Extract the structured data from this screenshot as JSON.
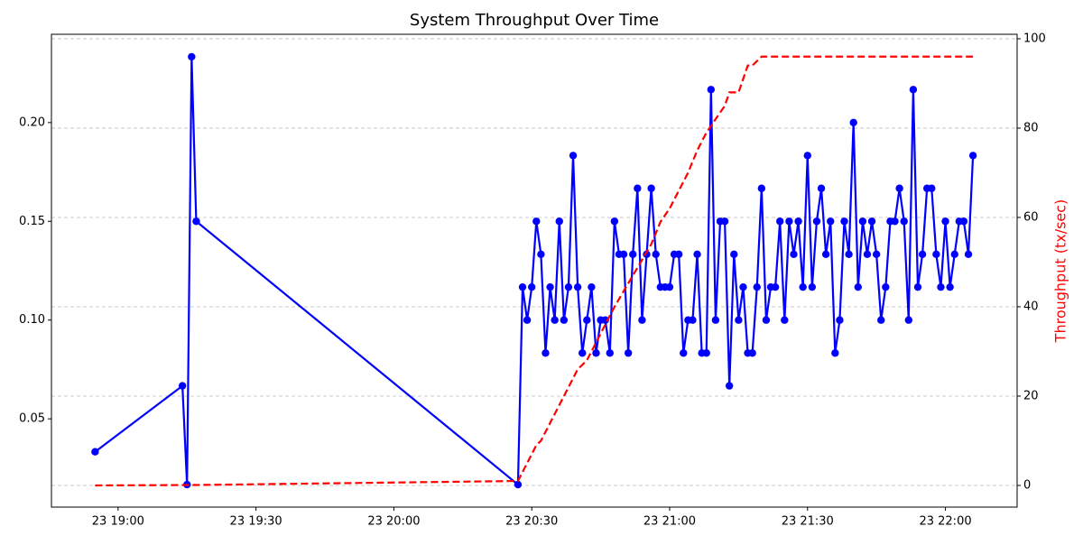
{
  "chart_data": {
    "type": "line",
    "title": "System Throughput Over Time",
    "y2label": "Throughput (tx/sec)",
    "xlim": [
      1125.5,
      1335.6
    ],
    "xticks": [
      {
        "value": 1140,
        "label": "23 19:00"
      },
      {
        "value": 1170,
        "label": "23 19:30"
      },
      {
        "value": 1200,
        "label": "23 20:00"
      },
      {
        "value": 1230,
        "label": "23 20:30"
      },
      {
        "value": 1260,
        "label": "23 21:00"
      },
      {
        "value": 1290,
        "label": "23 21:30"
      },
      {
        "value": 1320,
        "label": "23 22:00"
      }
    ],
    "ylim": [
      0.0053,
      0.2447
    ],
    "yticks": [
      0.05,
      {
        "value": 0.1,
        "label": "0.10"
      },
      0.15,
      {
        "value": 0.2,
        "label": "0.20"
      }
    ],
    "y2lim": [
      -4.85,
      101.0
    ],
    "y2ticks": [
      0,
      20,
      40,
      60,
      80,
      100
    ],
    "grid": "y2",
    "series": [
      {
        "color": "#0000ff",
        "style": "solid",
        "marker": true,
        "x": [
          1135,
          1154,
          1155,
          1156,
          1157,
          1227,
          1228,
          1229,
          1230,
          1231,
          1232,
          1233,
          1234,
          1235,
          1236,
          1237,
          1238,
          1239,
          1240,
          1241,
          1242,
          1243,
          1244,
          1245,
          1246,
          1247,
          1248,
          1249,
          1250,
          1251,
          1252,
          1253,
          1254,
          1255,
          1256,
          1257,
          1258,
          1259,
          1260,
          1261,
          1262,
          1263,
          1264,
          1265,
          1266,
          1267,
          1268,
          1269,
          1270,
          1271,
          1272,
          1273,
          1274,
          1275,
          1276,
          1277,
          1278,
          1279,
          1280,
          1281,
          1282,
          1283,
          1284,
          1285,
          1286,
          1287,
          1288,
          1289,
          1290,
          1291,
          1292,
          1293,
          1294,
          1295,
          1296,
          1297,
          1298,
          1299,
          1300,
          1301,
          1302,
          1303,
          1304,
          1305,
          1306,
          1307,
          1308,
          1309,
          1310,
          1311,
          1312,
          1313,
          1314,
          1315,
          1316,
          1317,
          1318,
          1319,
          1320,
          1321,
          1322,
          1323,
          1324,
          1325,
          1326
        ],
        "values": [
          0.0333,
          0.0667,
          0.0167,
          0.2333,
          0.15,
          0.0167,
          0.1167,
          0.1,
          0.1167,
          0.15,
          0.1333,
          0.0833,
          0.1167,
          0.1,
          0.15,
          0.1,
          0.1167,
          0.1833,
          0.1167,
          0.0833,
          0.1,
          0.1167,
          0.0833,
          0.1,
          0.1,
          0.0833,
          0.15,
          0.1333,
          0.1333,
          0.0833,
          0.1333,
          0.1667,
          0.1,
          0.1333,
          0.1667,
          0.1333,
          0.1167,
          0.1167,
          0.1167,
          0.1333,
          0.1333,
          0.0833,
          0.1,
          0.1,
          0.1333,
          0.0833,
          0.0833,
          0.2167,
          0.1,
          0.15,
          0.15,
          0.0667,
          0.1333,
          0.1,
          0.1167,
          0.0833,
          0.0833,
          0.1167,
          0.1667,
          0.1,
          0.1167,
          0.1167,
          0.15,
          0.1,
          0.15,
          0.1333,
          0.15,
          0.1167,
          0.1833,
          0.1167,
          0.15,
          0.1667,
          0.1333,
          0.15,
          0.0833,
          0.1,
          0.15,
          0.1333,
          0.2,
          0.1167,
          0.15,
          0.1333,
          0.15,
          0.1333,
          0.1,
          0.1167,
          0.15,
          0.15,
          0.1667,
          0.15,
          0.1,
          0.2167,
          0.1167,
          0.1333,
          0.1667,
          0.1667,
          0.1333,
          0.1167,
          0.15,
          0.1167,
          0.1333,
          0.15,
          0.15,
          0.1333,
          0.1833
        ]
      },
      {
        "color": "#ff0000",
        "style": "dashed",
        "marker": false,
        "axis": "y2",
        "x": [
          1135,
          1157,
          1227,
          1230,
          1231,
          1232,
          1233,
          1236,
          1240,
          1242,
          1244,
          1248,
          1252,
          1256,
          1258,
          1260,
          1262,
          1264,
          1266,
          1268,
          1270,
          1272,
          1273,
          1275,
          1277,
          1278,
          1280,
          1326
        ],
        "values": [
          0,
          0.1,
          1,
          7,
          9,
          10,
          12,
          18,
          26,
          28,
          32,
          40,
          47,
          54,
          59,
          62,
          66,
          70,
          75,
          79,
          82,
          85,
          88,
          88,
          94,
          94,
          96,
          96
        ]
      }
    ]
  }
}
